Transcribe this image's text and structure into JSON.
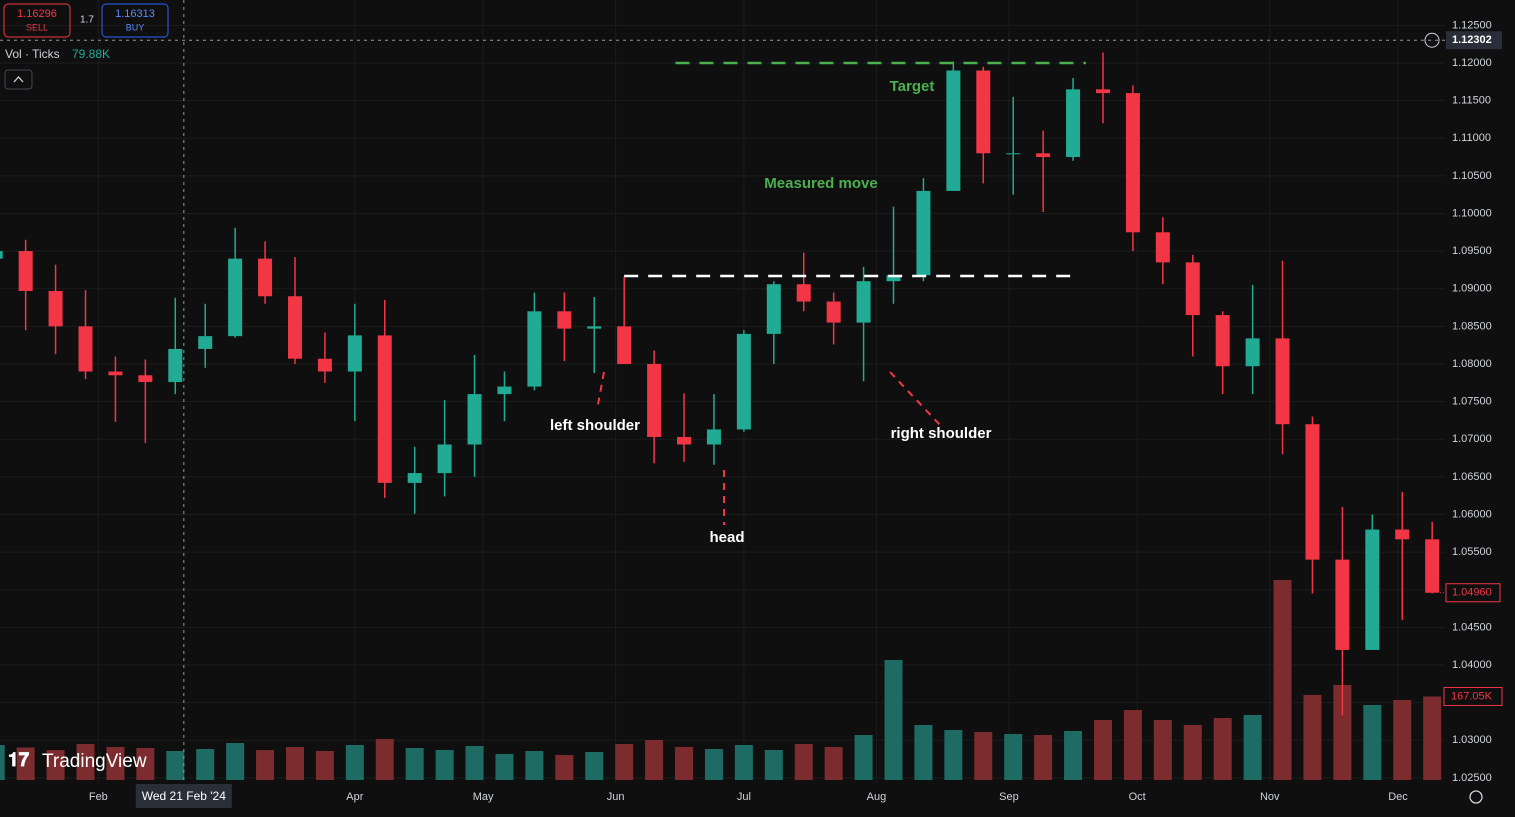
{
  "header": {
    "sell": {
      "price": "1.16296",
      "label": "SELL"
    },
    "spread": "1.7",
    "buy": {
      "price": "1.16313",
      "label": "BUY"
    }
  },
  "indicator": {
    "name": "Vol · Ticks",
    "value": "79.88K"
  },
  "brand": "TradingView",
  "chart_data": {
    "type": "candlestick",
    "x": [
      "2024-01-08",
      "2024-01-15",
      "2024-01-22",
      "2024-01-29",
      "2024-02-05",
      "2024-02-12",
      "2024-02-19",
      "2024-02-26",
      "2024-03-04",
      "2024-03-11",
      "2024-03-18",
      "2024-03-25",
      "2024-04-01",
      "2024-04-08",
      "2024-04-15",
      "2024-04-22",
      "2024-04-29",
      "2024-05-06",
      "2024-05-13",
      "2024-05-20",
      "2024-05-27",
      "2024-06-03",
      "2024-06-10",
      "2024-06-17",
      "2024-06-24",
      "2024-07-01",
      "2024-07-08",
      "2024-07-15",
      "2024-07-22",
      "2024-07-29",
      "2024-08-05",
      "2024-08-12",
      "2024-08-19",
      "2024-08-26",
      "2024-09-02",
      "2024-09-09",
      "2024-09-16",
      "2024-09-23",
      "2024-09-30",
      "2024-10-07",
      "2024-10-14",
      "2024-10-21",
      "2024-10-28",
      "2024-11-04",
      "2024-11-11",
      "2024-11-18",
      "2024-11-25",
      "2024-12-02",
      "2024-12-09"
    ],
    "open": [
      1.094,
      1.095,
      1.0897,
      1.085,
      1.079,
      1.0785,
      1.0776,
      1.082,
      1.0837,
      1.094,
      1.089,
      1.0807,
      1.079,
      1.0838,
      1.0642,
      1.0655,
      1.0693,
      1.076,
      1.077,
      1.087,
      1.0847,
      1.085,
      1.08,
      1.0703,
      1.0693,
      1.0713,
      1.084,
      1.0906,
      1.0883,
      1.0855,
      1.091,
      1.0918,
      1.103,
      1.119,
      1.108,
      1.108,
      1.1075,
      1.1165,
      1.116,
      1.0975,
      1.0935,
      1.0865,
      1.0797,
      1.0834,
      1.072,
      1.054,
      1.042,
      1.058,
      1.0567
    ],
    "high": [
      1.0998,
      1.0965,
      1.0932,
      1.0898,
      1.081,
      1.0806,
      1.0888,
      1.088,
      1.0981,
      1.0963,
      1.0942,
      1.0842,
      1.088,
      1.0885,
      1.069,
      1.0752,
      1.0812,
      1.079,
      1.0895,
      1.0895,
      1.0889,
      1.0916,
      1.0818,
      1.0761,
      1.076,
      1.0845,
      1.091,
      1.0948,
      1.0895,
      1.0929,
      1.1009,
      1.1047,
      1.1202,
      1.1195,
      1.1155,
      1.111,
      1.118,
      1.1214,
      1.117,
      1.0995,
      1.0945,
      1.087,
      1.0905,
      1.0937,
      1.073,
      1.061,
      1.06,
      1.063,
      1.059
    ],
    "low": [
      1.091,
      1.0845,
      1.0813,
      1.078,
      1.0723,
      1.0695,
      1.076,
      1.0795,
      1.0835,
      1.088,
      1.08,
      1.0775,
      1.0724,
      1.0622,
      1.0601,
      1.0624,
      1.065,
      1.0724,
      1.0765,
      1.0804,
      1.0788,
      1.08,
      1.0668,
      1.067,
      1.0666,
      1.071,
      1.08,
      1.087,
      1.0826,
      1.0777,
      1.088,
      1.091,
      1.103,
      1.104,
      1.1025,
      1.1002,
      1.107,
      1.112,
      1.095,
      1.0906,
      1.081,
      1.076,
      1.076,
      1.068,
      1.0495,
      1.0333,
      1.042,
      1.046,
      1.0495
    ],
    "close": [
      1.095,
      1.0897,
      1.085,
      1.079,
      1.0785,
      1.0776,
      1.082,
      1.0837,
      1.094,
      1.089,
      1.0807,
      1.079,
      1.0838,
      1.0642,
      1.0655,
      1.0693,
      1.076,
      1.077,
      1.087,
      1.0847,
      1.085,
      1.08,
      1.0703,
      1.0693,
      1.0713,
      1.084,
      1.0906,
      1.0883,
      1.0855,
      1.091,
      1.0918,
      1.103,
      1.119,
      1.108,
      1.108,
      1.1075,
      1.1165,
      1.116,
      1.0975,
      1.0935,
      1.0865,
      1.0797,
      1.0834,
      1.072,
      1.054,
      1.042,
      1.058,
      1.0567,
      1.0496
    ],
    "volume": [
      70,
      65,
      60,
      72,
      66,
      64,
      58,
      62,
      74,
      60,
      66,
      58,
      70,
      82,
      64,
      60,
      68,
      52,
      58,
      50,
      56,
      72,
      80,
      66,
      62,
      70,
      60,
      72,
      66,
      90,
      240,
      110,
      100,
      96,
      92,
      90,
      98,
      120,
      140,
      120,
      110,
      124,
      130,
      400,
      170,
      190,
      150,
      160,
      167.05
    ],
    "up_color": "#22ab94",
    "down_color": "#f23645",
    "volume_up_color": "#1e6b63",
    "volume_down_color": "#7c2c2f",
    "ylim": [
      1.02445,
      1.12837
    ],
    "yticks": [
      {
        "value": 1.125,
        "label": "1.12500"
      },
      {
        "value": 1.12,
        "label": "1.12000"
      },
      {
        "value": 1.115,
        "label": "1.11500"
      },
      {
        "value": 1.11,
        "label": "1.11000"
      },
      {
        "value": 1.105,
        "label": "1.10500"
      },
      {
        "value": 1.1,
        "label": "1.10000"
      },
      {
        "value": 1.095,
        "label": "1.09500"
      },
      {
        "value": 1.09,
        "label": "1.09000"
      },
      {
        "value": 1.085,
        "label": "1.08500"
      },
      {
        "value": 1.08,
        "label": "1.08000"
      },
      {
        "value": 1.075,
        "label": "1.07500"
      },
      {
        "value": 1.07,
        "label": "1.07000"
      },
      {
        "value": 1.065,
        "label": "1.06500"
      },
      {
        "value": 1.06,
        "label": "1.06000"
      },
      {
        "value": 1.055,
        "label": "1.05500"
      },
      {
        "value": 1.05,
        "label": "1.05000"
      },
      {
        "value": 1.045,
        "label": "1.04500"
      },
      {
        "value": 1.04,
        "label": "1.04000"
      },
      {
        "value": 1.035,
        "label": "1.03500"
      },
      {
        "value": 1.03,
        "label": "1.03000"
      },
      {
        "value": 1.025,
        "label": "1.02500"
      }
    ],
    "xlim": [
      "2024-01-09",
      "2024-12-12"
    ],
    "xticks": [
      {
        "value": "2024-02-01",
        "label": "Feb"
      },
      {
        "value": "2024-04-01",
        "label": "Apr"
      },
      {
        "value": "2024-05-01",
        "label": "May"
      },
      {
        "value": "2024-06-01",
        "label": "Jun"
      },
      {
        "value": "2024-07-01",
        "label": "Jul"
      },
      {
        "value": "2024-08-01",
        "label": "Aug"
      },
      {
        "value": "2024-09-01",
        "label": "Sep"
      },
      {
        "value": "2024-10-01",
        "label": "Oct"
      },
      {
        "value": "2024-11-01",
        "label": "Nov"
      },
      {
        "value": "2024-12-01",
        "label": "Dec"
      }
    ],
    "volume_lim": [
      0,
      400
    ],
    "grid": true,
    "last_price": {
      "value": 1.0496,
      "label": "1.04960"
    },
    "last_volume": {
      "value": 167.05,
      "label": "167.05K"
    },
    "crosshair": {
      "price": {
        "value": 1.12302,
        "label": "1.12302"
      },
      "date": "2024-02-21",
      "date_label": "Wed 21 Feb '24"
    },
    "levels": [
      {
        "price": 1.12,
        "from": "2024-06-15",
        "to": "2024-09-19",
        "color": "#4caf50"
      },
      {
        "price": 1.0917,
        "from": "2024-06-03",
        "to": "2024-09-16",
        "color": "#ffffff"
      }
    ],
    "annotations": [
      "Target",
      "Measured move",
      "left shoulder",
      "head",
      "right shoulder"
    ]
  }
}
